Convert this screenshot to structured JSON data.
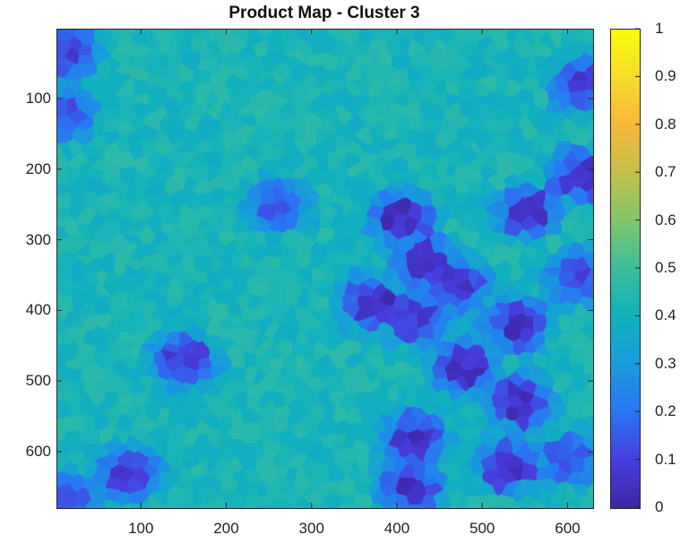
{
  "chart_data": {
    "type": "heatmap",
    "title": "Product Map - Cluster 3",
    "xlabel": "",
    "ylabel": "",
    "xlim": [
      1,
      630
    ],
    "ylim": [
      1,
      680
    ],
    "y_reversed": true,
    "x_ticks": [
      "100",
      "200",
      "300",
      "400",
      "500",
      "600"
    ],
    "y_ticks": [
      "100",
      "200",
      "300",
      "400",
      "500",
      "600"
    ],
    "colorbar": {
      "colormap": "parula",
      "range": [
        0,
        1
      ],
      "ticks": [
        "0",
        "0.1",
        "0.2",
        "0.3",
        "0.4",
        "0.5",
        "0.6",
        "0.7",
        "0.8",
        "0.9",
        "1"
      ]
    },
    "background_value": 0.42,
    "low_regions": [
      {
        "x": 405,
        "y": 270,
        "value": 0.05
      },
      {
        "x": 430,
        "y": 330,
        "value": 0.06
      },
      {
        "x": 470,
        "y": 360,
        "value": 0.07
      },
      {
        "x": 370,
        "y": 390,
        "value": 0.05
      },
      {
        "x": 420,
        "y": 410,
        "value": 0.08
      },
      {
        "x": 480,
        "y": 480,
        "value": 0.06
      },
      {
        "x": 540,
        "y": 420,
        "value": 0.05
      },
      {
        "x": 545,
        "y": 530,
        "value": 0.05
      },
      {
        "x": 530,
        "y": 620,
        "value": 0.05
      },
      {
        "x": 420,
        "y": 580,
        "value": 0.06
      },
      {
        "x": 415,
        "y": 650,
        "value": 0.05
      },
      {
        "x": 550,
        "y": 260,
        "value": 0.07
      },
      {
        "x": 620,
        "y": 80,
        "value": 0.08
      },
      {
        "x": 615,
        "y": 210,
        "value": 0.08
      },
      {
        "x": 610,
        "y": 350,
        "value": 0.12
      },
      {
        "x": 85,
        "y": 630,
        "value": 0.08
      },
      {
        "x": 10,
        "y": 30,
        "value": 0.1
      },
      {
        "x": 10,
        "y": 120,
        "value": 0.15
      },
      {
        "x": 10,
        "y": 670,
        "value": 0.1
      },
      {
        "x": 150,
        "y": 470,
        "value": 0.08
      },
      {
        "x": 260,
        "y": 250,
        "value": 0.15
      },
      {
        "x": 600,
        "y": 610,
        "value": 0.15
      }
    ]
  }
}
